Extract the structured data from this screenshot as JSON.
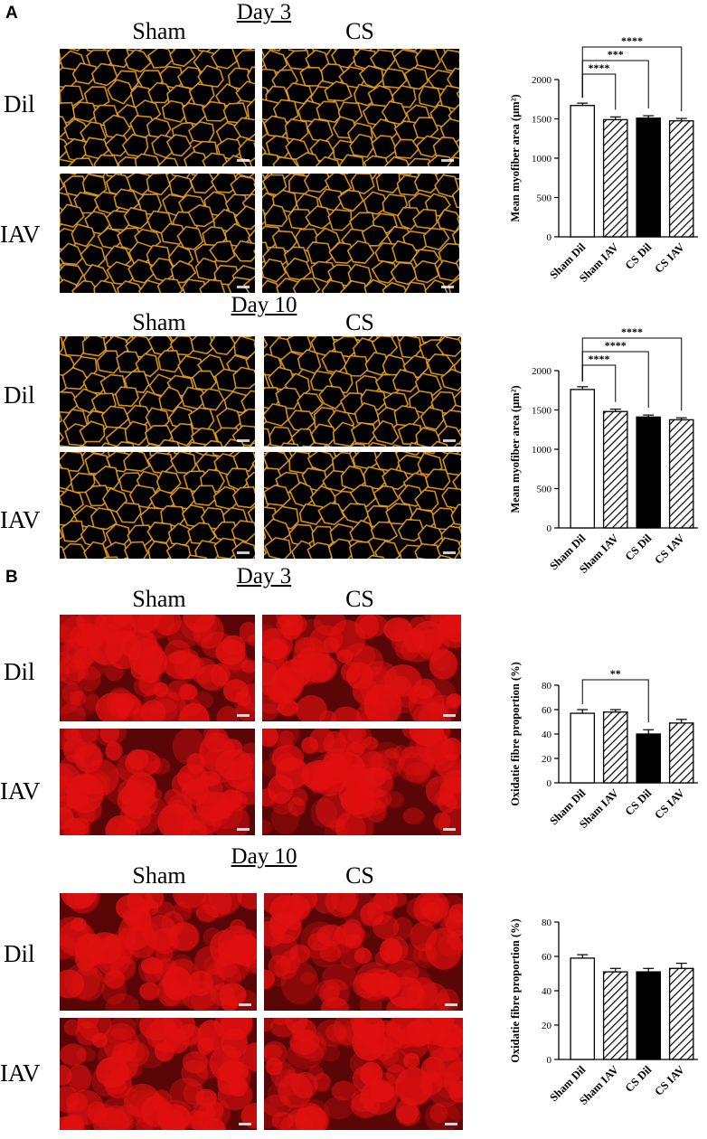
{
  "panels": {
    "A": {
      "letter": "A",
      "blocks": [
        {
          "day": "Day 3",
          "col1": "Sham",
          "col2": "CS",
          "row1": "Dil",
          "row2": "IAV"
        },
        {
          "day": "Day 10",
          "col1": "Sham",
          "col2": "CS",
          "row1": "Dil",
          "row2": "IAV"
        }
      ]
    },
    "B": {
      "letter": "B",
      "blocks": [
        {
          "day": "Day 3",
          "col1": "Sham",
          "col2": "CS",
          "row1": "Dil",
          "row2": "IAV"
        },
        {
          "day": "Day 10",
          "col1": "Sham",
          "col2": "CS",
          "row1": "Dil",
          "row2": "IAV"
        }
      ]
    }
  },
  "colors": {
    "stain_A": "#f5a623",
    "stain_B": "#e01010"
  },
  "chart_data": [
    {
      "type": "bar",
      "ylabel": "Mean myofiber area (μm²)",
      "ylim": [
        0,
        2000
      ],
      "yticks": [
        0,
        500,
        1000,
        1500,
        2000
      ],
      "categories": [
        "Sham Dil",
        "Sham IAV",
        "CS Dil",
        "CS IAV"
      ],
      "values": [
        1670,
        1490,
        1510,
        1475
      ],
      "errors": [
        30,
        35,
        30,
        30
      ],
      "patterns": [
        "open",
        "hatch",
        "solid",
        "hatch"
      ],
      "significance": [
        {
          "from": 0,
          "to": 1,
          "label": "****"
        },
        {
          "from": 0,
          "to": 2,
          "label": "***"
        },
        {
          "from": 0,
          "to": 3,
          "label": "****"
        }
      ]
    },
    {
      "type": "bar",
      "ylabel": "Mean myofiber area (μm²)",
      "ylim": [
        0,
        2000
      ],
      "yticks": [
        0,
        500,
        1000,
        1500,
        2000
      ],
      "categories": [
        "Sham Dil",
        "Sham IAV",
        "CS Dil",
        "CS IAV"
      ],
      "values": [
        1760,
        1480,
        1410,
        1375
      ],
      "errors": [
        35,
        30,
        25,
        25
      ],
      "patterns": [
        "open",
        "hatch",
        "solid",
        "hatch"
      ],
      "significance": [
        {
          "from": 0,
          "to": 1,
          "label": "****"
        },
        {
          "from": 0,
          "to": 2,
          "label": "****"
        },
        {
          "from": 0,
          "to": 3,
          "label": "****"
        }
      ]
    },
    {
      "type": "bar",
      "ylabel": "Oxidatie fibre proportion (%)",
      "ylim": [
        0,
        80
      ],
      "yticks": [
        0,
        20,
        40,
        60,
        80
      ],
      "categories": [
        "Sham Dil",
        "Sham IAV",
        "CS Dil",
        "CS IAV"
      ],
      "values": [
        57,
        58,
        40,
        49
      ],
      "errors": [
        3,
        2,
        3.5,
        3
      ],
      "patterns": [
        "open",
        "hatch",
        "solid",
        "hatch"
      ],
      "significance": [
        {
          "from": 0,
          "to": 2,
          "label": "**"
        }
      ]
    },
    {
      "type": "bar",
      "ylabel": "Oxidatie fibre proportion (%)",
      "ylim": [
        0,
        80
      ],
      "yticks": [
        0,
        20,
        40,
        60,
        80
      ],
      "categories": [
        "Sham Dil",
        "Sham IAV",
        "CS Dil",
        "CS IAV"
      ],
      "values": [
        59,
        51,
        51,
        53
      ],
      "errors": [
        2,
        2,
        2,
        3
      ],
      "patterns": [
        "open",
        "hatch",
        "solid",
        "hatch"
      ],
      "significance": []
    }
  ]
}
